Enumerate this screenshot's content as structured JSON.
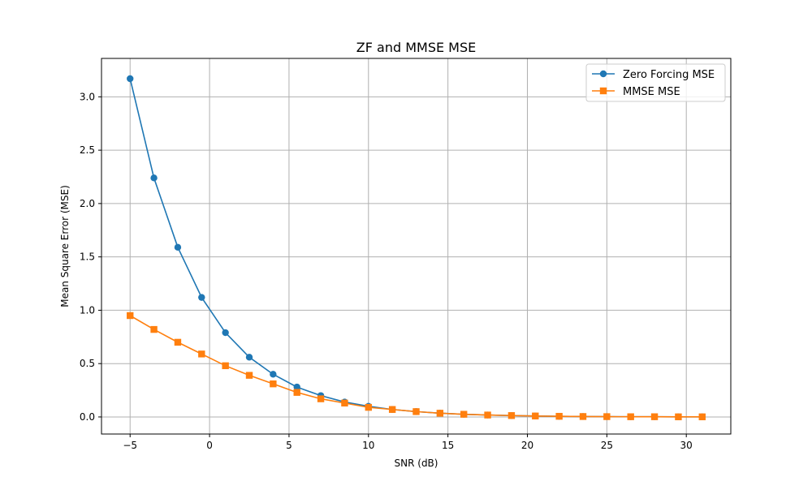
{
  "chart_data": {
    "type": "line",
    "title": "ZF and MMSE MSE",
    "xlabel": "SNR (dB)",
    "ylabel": "Mean Square Error (MSE)",
    "xlim": [
      -6.8,
      32.8
    ],
    "ylim": [
      -0.16,
      3.36
    ],
    "x_ticks": [
      -5,
      0,
      5,
      10,
      15,
      20,
      25,
      30
    ],
    "x_tick_labels": [
      "−5",
      "0",
      "5",
      "10",
      "15",
      "20",
      "25",
      "30"
    ],
    "y_ticks": [
      0.0,
      0.5,
      1.0,
      1.5,
      2.0,
      2.5,
      3.0
    ],
    "y_tick_labels": [
      "0.0",
      "0.5",
      "1.0",
      "1.5",
      "2.0",
      "2.5",
      "3.0"
    ],
    "grid": true,
    "legend_position": "top-right",
    "x": [
      -5,
      -3.5,
      -2,
      -0.5,
      1,
      2.5,
      4,
      5.5,
      7,
      8.5,
      10,
      11.5,
      13,
      14.5,
      16,
      17.5,
      19,
      20.5,
      22,
      23.5,
      25,
      26.5,
      28,
      29.5,
      31
    ],
    "series": [
      {
        "name": "Zero Forcing MSE",
        "marker": "circle",
        "color": "#1f77b4",
        "values": [
          3.17,
          2.24,
          1.59,
          1.12,
          0.79,
          0.56,
          0.4,
          0.28,
          0.2,
          0.14,
          0.1,
          0.07,
          0.05,
          0.035,
          0.025,
          0.018,
          0.013,
          0.009,
          0.006,
          0.004,
          0.003,
          0.002,
          0.002,
          0.001,
          0.001
        ]
      },
      {
        "name": "MMSE MSE",
        "marker": "square",
        "color": "#ff7f0e",
        "values": [
          0.95,
          0.82,
          0.7,
          0.59,
          0.48,
          0.39,
          0.31,
          0.23,
          0.17,
          0.13,
          0.09,
          0.07,
          0.05,
          0.035,
          0.025,
          0.018,
          0.013,
          0.009,
          0.006,
          0.004,
          0.003,
          0.002,
          0.002,
          0.001,
          0.001
        ]
      }
    ]
  }
}
